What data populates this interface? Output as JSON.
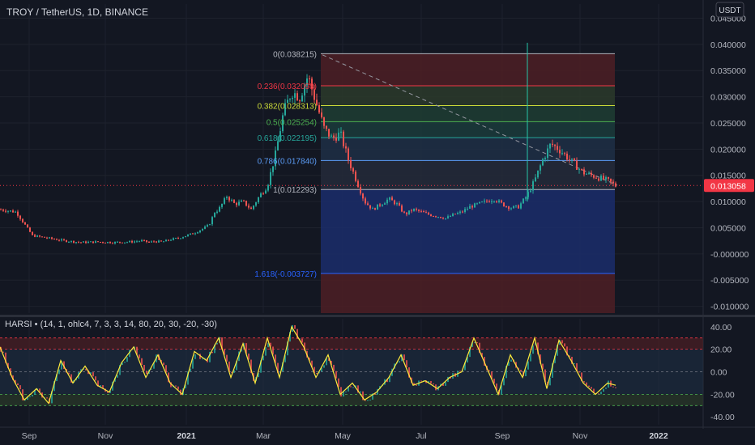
{
  "symbol": {
    "title": "TROY / TetherUS, 1D, BINANCE",
    "currency_button": "USDT"
  },
  "chart_data": {
    "type": "candlestick",
    "price_axis": {
      "ticks": [
        "0.045000",
        "0.040000",
        "0.035000",
        "0.030000",
        "0.025000",
        "0.020000",
        "0.015000",
        "0.010000",
        "0.005000",
        "-0.000000",
        "-0.005000",
        "-0.010000"
      ],
      "values": [
        0.045,
        0.04,
        0.035,
        0.03,
        0.025,
        0.02,
        0.015,
        0.01,
        0.005,
        0.0,
        -0.005,
        -0.01
      ],
      "ylim": [
        -0.0113,
        0.0477
      ]
    },
    "current_price": {
      "value": 0.013058,
      "label": "0.013058",
      "color": "#f23645"
    },
    "time_axis": {
      "labels": [
        "Sep",
        "Nov",
        "2021",
        "Mar",
        "May",
        "Jul",
        "Sep",
        "Nov",
        "2022"
      ]
    },
    "close_series": {
      "x": [
        0,
        20,
        40,
        60,
        80,
        100,
        120,
        140,
        160,
        175,
        185,
        190,
        200,
        205,
        212,
        220,
        230,
        240,
        250,
        258,
        265,
        270,
        280,
        290,
        300,
        310,
        320,
        330,
        340,
        350,
        360,
        370,
        380,
        390,
        400,
        410,
        420,
        430,
        440,
        450,
        460,
        470,
        480,
        490,
        500,
        510,
        520,
        530,
        540,
        550,
        560,
        570,
        580,
        590,
        600,
        610,
        620,
        630,
        640,
        650,
        660,
        670,
        680,
        690,
        700,
        710,
        720,
        730,
        740,
        750,
        760
      ],
      "y": [
        0.0085,
        0.008,
        0.0035,
        0.003,
        0.0025,
        0.0022,
        0.0023,
        0.0022,
        0.0023,
        0.0025,
        0.0022,
        0.0024,
        0.0023,
        0.0025,
        0.0028,
        0.003,
        0.0035,
        0.004,
        0.0048,
        0.0055,
        0.008,
        0.0085,
        0.011,
        0.0095,
        0.01,
        0.0085,
        0.011,
        0.013,
        0.019,
        0.027,
        0.031,
        0.03,
        0.034,
        0.029,
        0.024,
        0.022,
        0.023,
        0.018,
        0.014,
        0.01,
        0.0085,
        0.0095,
        0.0105,
        0.0095,
        0.0075,
        0.0085,
        0.008,
        0.0075,
        0.0072,
        0.0068,
        0.0075,
        0.008,
        0.009,
        0.0095,
        0.01,
        0.0105,
        0.0095,
        0.0088,
        0.009,
        0.011,
        0.014,
        0.018,
        0.021,
        0.02,
        0.0185,
        0.017,
        0.0155,
        0.015,
        0.0145,
        0.014,
        0.013
      ]
    },
    "fibonacci": {
      "levels": [
        {
          "label": "0(0.038215)",
          "value": 0.038215,
          "color": "#b2b5be"
        },
        {
          "label": "0.236(0.032098)",
          "value": 0.032098,
          "color": "#f23645"
        },
        {
          "label": "0.382(0.028313)",
          "value": 0.028313,
          "color": "#cddc39"
        },
        {
          "label": "0.5(0.025254)",
          "value": 0.025254,
          "color": "#4caf50"
        },
        {
          "label": "0.618(0.022195)",
          "value": 0.022195,
          "color": "#26a69a"
        },
        {
          "label": "0.786(0.017840)",
          "value": 0.01784,
          "color": "#5b9cf6"
        },
        {
          "label": "1(0.012293)",
          "value": 0.012293,
          "color": "#b2b5be"
        },
        {
          "label": "1.618(-0.003727)",
          "value": -0.003727,
          "color": "#2962ff"
        }
      ],
      "bottom": -0.0113,
      "band_colors": [
        "#4d1f24",
        "#2b3a2a",
        "#1f3d33",
        "#1b3b3b",
        "#1e2f45",
        "#252a3a",
        "#1b2d6b",
        "#4d1f24"
      ]
    },
    "indicator": {
      "title": "HARSI • (14, 1, ohlc4, 7, 3, 3, 14, 80, 20, 30, -20, -30)",
      "ticks": [
        "40.00",
        "20.00",
        "0.00",
        "-20.00",
        "-40.00"
      ],
      "tick_values": [
        40,
        20,
        0,
        -20,
        -40
      ],
      "ylim": [
        -47,
        47
      ],
      "upper_zone": [
        20,
        30
      ],
      "lower_zone": [
        -30,
        -20
      ],
      "line_color": "#ffeb3b",
      "series": {
        "x": [
          0,
          15,
          30,
          45,
          60,
          75,
          90,
          105,
          120,
          135,
          150,
          165,
          180,
          195,
          210,
          225,
          240,
          255,
          270,
          285,
          300,
          315,
          330,
          345,
          360,
          375,
          390,
          405,
          420,
          435,
          450,
          465,
          480,
          495,
          510,
          525,
          540,
          555,
          570,
          585,
          600,
          615,
          630,
          645,
          660,
          675,
          690,
          705,
          720,
          735,
          750,
          760
        ],
        "y": [
          22,
          -5,
          -25,
          -15,
          -28,
          10,
          -10,
          5,
          -12,
          -18,
          8,
          22,
          -5,
          15,
          -10,
          -20,
          18,
          10,
          30,
          -5,
          25,
          -10,
          30,
          -5,
          40,
          22,
          -5,
          15,
          -20,
          -10,
          -25,
          -18,
          -5,
          15,
          -12,
          -8,
          -15,
          -5,
          0,
          30,
          5,
          -20,
          15,
          -5,
          30,
          -15,
          28,
          10,
          -10,
          -20,
          -10,
          -12
        ]
      }
    }
  }
}
